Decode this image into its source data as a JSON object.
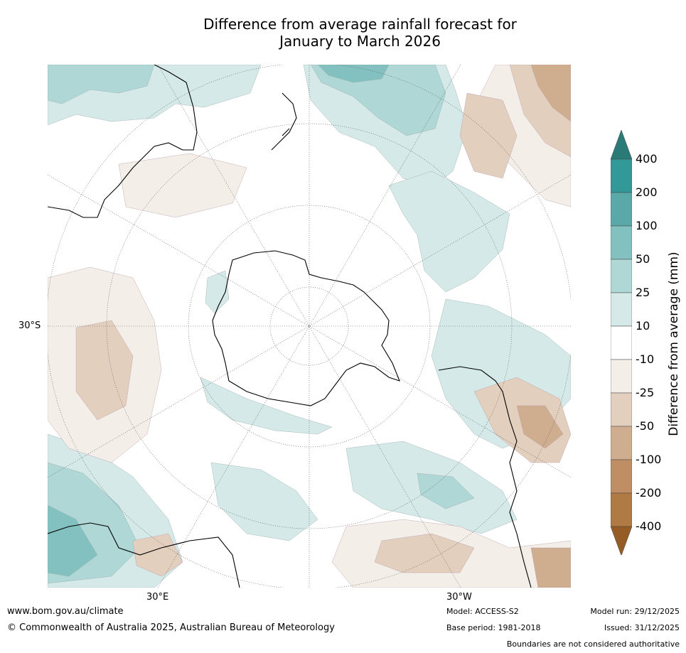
{
  "title_line1": "Difference from average rainfall forecast for",
  "title_line2": "January to March 2026",
  "axis_labels": {
    "lat": "30°S",
    "lon_east": "30°E",
    "lon_west": "30°W"
  },
  "colorbar": {
    "title": "Difference from average (mm)",
    "ticks": [
      "400",
      "200",
      "100",
      "50",
      "25",
      "10",
      "-10",
      "-25",
      "-50",
      "-100",
      "-200",
      "-400"
    ],
    "colors": {
      "over": "#2a7a77",
      "gt200": "#339998",
      "r100_200": "#5aa9a8",
      "r50_100": "#82c1bf",
      "r25_50": "#aed7d5",
      "r10_25": "#d4e9e8",
      "neutral": "#ffffff",
      "rm10_25": "#f3eee8",
      "rm25_50": "#e2cfbe",
      "rm50_100": "#cfae90",
      "rm100_200": "#bf8e65",
      "rm200_400": "#b07a45",
      "under": "#965c26"
    }
  },
  "footer": {
    "website": "www.bom.gov.au/climate",
    "copyright": "© Commonwealth of Australia 2025, Australian Bureau of Meteorology",
    "model": "Model: ACCESS-S2",
    "base_period": "Base period: 1981-2018",
    "model_run": "Model run: 29/12/2025",
    "issued": "Issued: 31/12/2025",
    "disclaimer": "Boundaries are not considered authoritative"
  }
}
